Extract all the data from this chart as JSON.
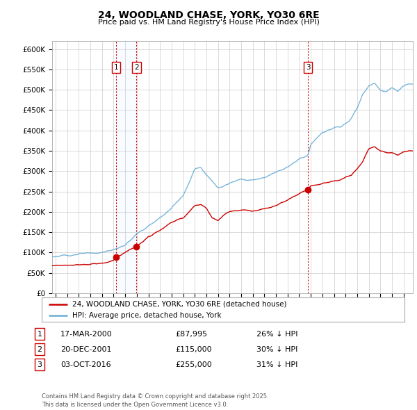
{
  "title": "24, WOODLAND CHASE, YORK, YO30 6RE",
  "subtitle": "Price paid vs. HM Land Registry's House Price Index (HPI)",
  "ylabel_ticks": [
    "£0",
    "£50K",
    "£100K",
    "£150K",
    "£200K",
    "£250K",
    "£300K",
    "£350K",
    "£400K",
    "£450K",
    "£500K",
    "£550K",
    "£600K"
  ],
  "ytick_values": [
    0,
    50000,
    100000,
    150000,
    200000,
    250000,
    300000,
    350000,
    400000,
    450000,
    500000,
    550000,
    600000
  ],
  "ylim": [
    0,
    620000
  ],
  "xlim_start": 1994.7,
  "xlim_end": 2025.8,
  "sale_dates": [
    2000.21,
    2001.97,
    2016.76
  ],
  "sale_prices": [
    87995,
    115000,
    255000
  ],
  "sale_labels": [
    "1",
    "2",
    "3"
  ],
  "vline_color": "#cc0000",
  "hpi_color": "#6baed6",
  "price_color": "#cc0000",
  "span_color": "#ddeeff",
  "legend_label_price": "24, WOODLAND CHASE, YORK, YO30 6RE (detached house)",
  "legend_label_hpi": "HPI: Average price, detached house, York",
  "table_entries": [
    {
      "num": "1",
      "date": "17-MAR-2000",
      "price": "£87,995",
      "note": "26% ↓ HPI"
    },
    {
      "num": "2",
      "date": "20-DEC-2001",
      "price": "£115,000",
      "note": "30% ↓ HPI"
    },
    {
      "num": "3",
      "date": "03-OCT-2016",
      "price": "£255,000",
      "note": "31% ↓ HPI"
    }
  ],
  "footer": "Contains HM Land Registry data © Crown copyright and database right 2025.\nThis data is licensed under the Open Government Licence v3.0.",
  "background_color": "#ffffff",
  "grid_color": "#cccccc",
  "hpi_anchors_x": [
    1994.7,
    1995.5,
    1996,
    1997,
    1998,
    1999,
    2000,
    2001,
    2002,
    2003,
    2004,
    2005,
    2006,
    2007,
    2007.5,
    2008,
    2008.5,
    2009,
    2009.5,
    2010,
    2011,
    2012,
    2013,
    2014,
    2015,
    2016,
    2016.76,
    2017,
    2018,
    2019,
    2019.5,
    2020,
    2020.5,
    2021,
    2021.5,
    2022,
    2022.5,
    2023,
    2023.5,
    2024,
    2024.5,
    2025,
    2025.8
  ],
  "hpi_anchors_y": [
    90000,
    91000,
    93000,
    96000,
    98000,
    100000,
    107000,
    118000,
    145000,
    165000,
    185000,
    210000,
    240000,
    305000,
    310000,
    290000,
    275000,
    260000,
    265000,
    270000,
    280000,
    278000,
    285000,
    298000,
    310000,
    330000,
    340000,
    365000,
    395000,
    405000,
    410000,
    415000,
    430000,
    455000,
    490000,
    510000,
    515000,
    500000,
    495000,
    505000,
    495000,
    510000,
    515000
  ],
  "price_anchors_x": [
    1994.7,
    1995,
    1996,
    1997,
    1998,
    1999,
    2000.0,
    2000.21,
    2000.5,
    2001,
    2001.97,
    2002.5,
    2003,
    2004,
    2005,
    2006,
    2007,
    2007.5,
    2008,
    2008.5,
    2009,
    2009.5,
    2010,
    2011,
    2012,
    2013,
    2014,
    2015,
    2016,
    2016.76,
    2017,
    2018,
    2019,
    2019.5,
    2020,
    2020.5,
    2021,
    2021.5,
    2022,
    2022.5,
    2023,
    2023.5,
    2024,
    2024.5,
    2025,
    2025.8
  ],
  "price_anchors_y": [
    67000,
    67500,
    69000,
    70000,
    71000,
    73000,
    80000,
    87995,
    92000,
    100000,
    115000,
    125000,
    140000,
    155000,
    175000,
    185000,
    215000,
    218000,
    210000,
    185000,
    178000,
    193000,
    200000,
    205000,
    202000,
    208000,
    215000,
    230000,
    245000,
    255000,
    263000,
    270000,
    275000,
    278000,
    285000,
    290000,
    305000,
    325000,
    355000,
    360000,
    350000,
    345000,
    345000,
    340000,
    348000,
    350000
  ]
}
